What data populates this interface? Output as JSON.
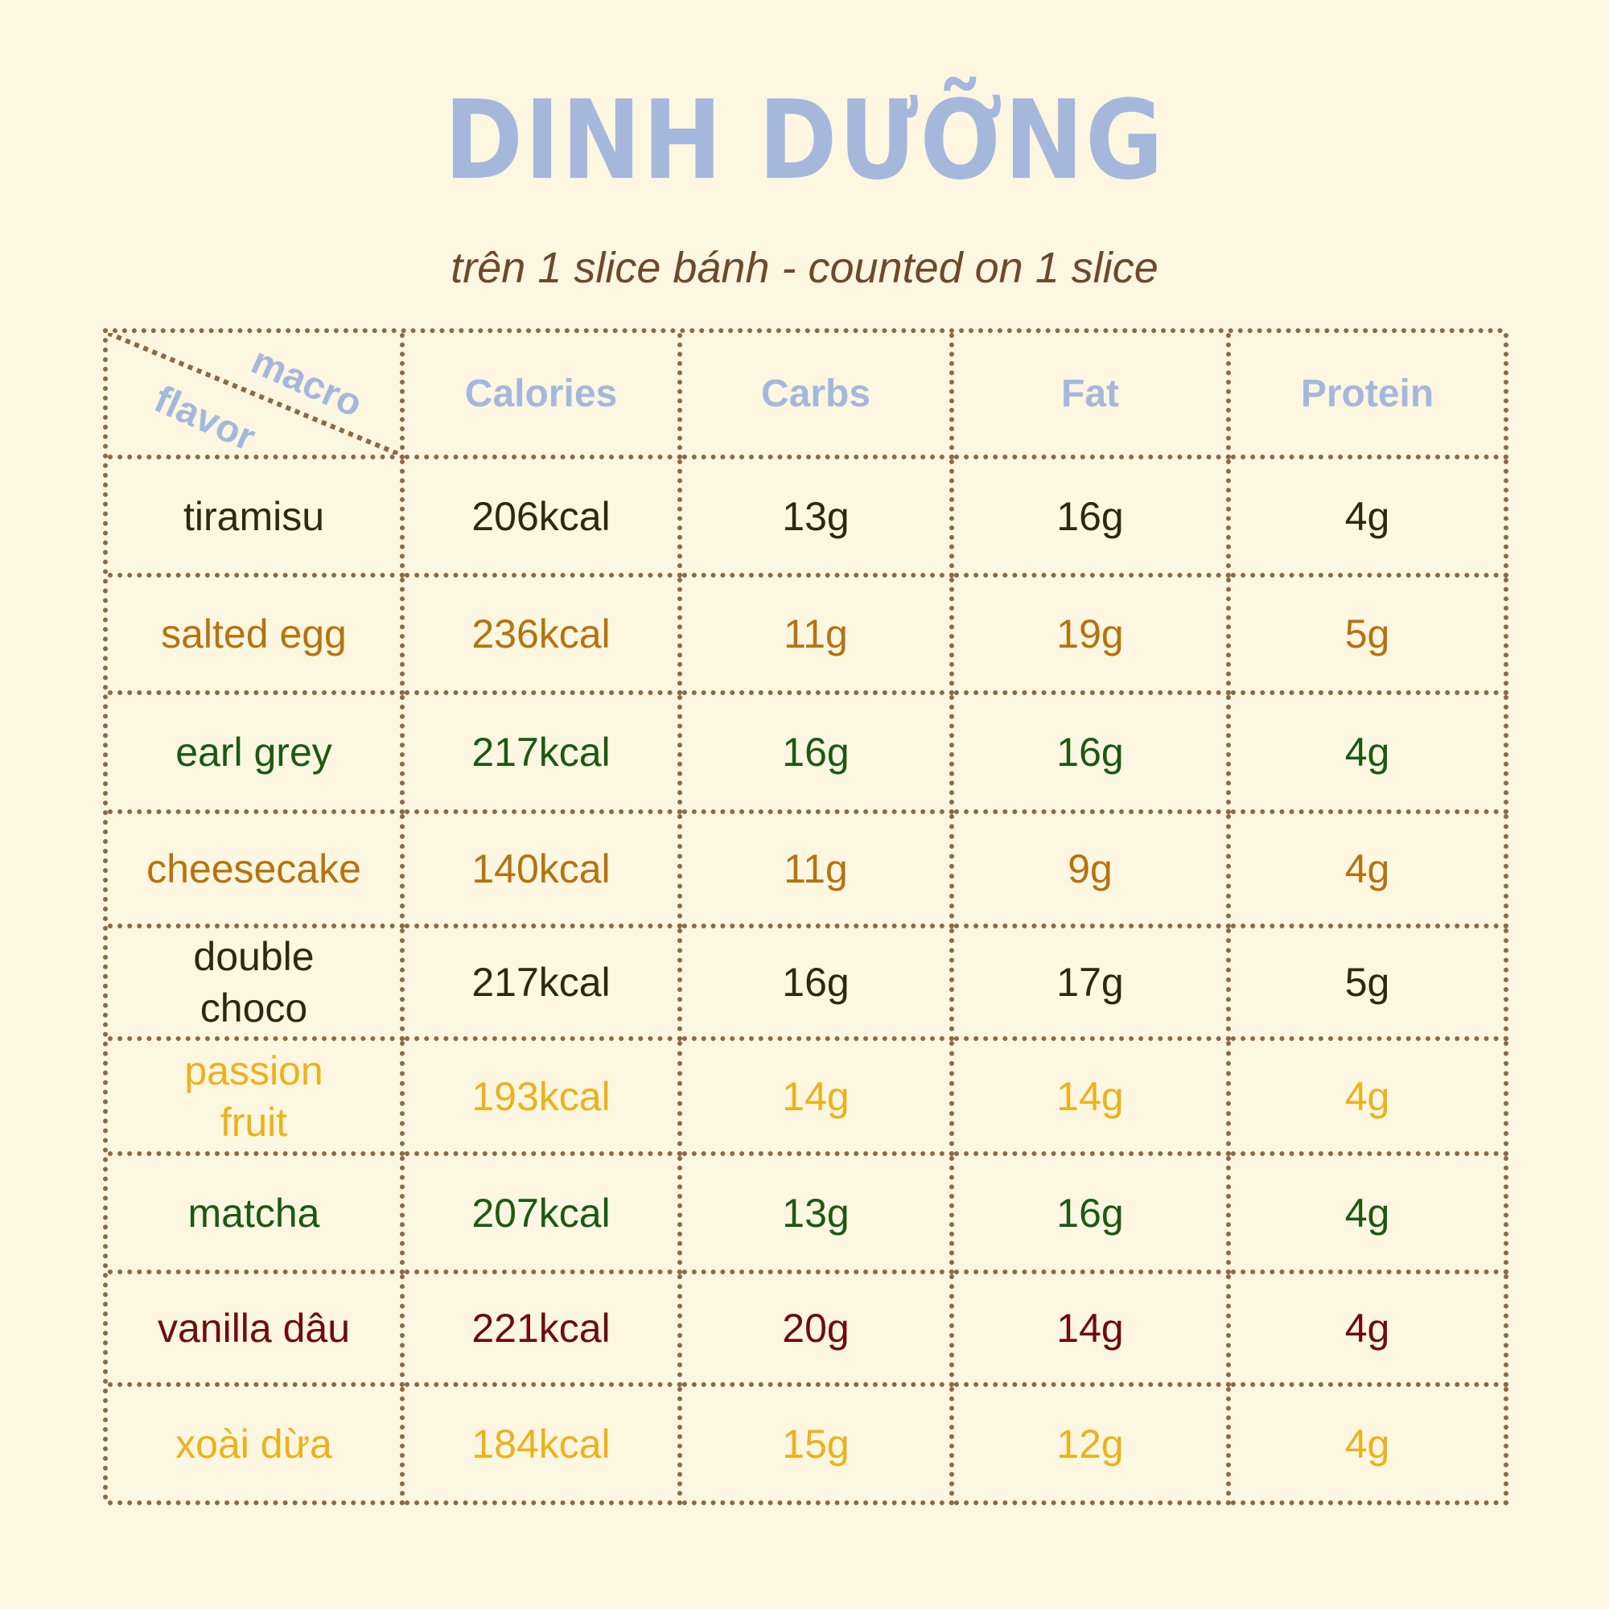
{
  "title": "DINH DƯỠNG",
  "subtitle": "trên 1 slice bánh - counted on 1 slice",
  "colors": {
    "background": "#fdf6e1",
    "border": "#8b6a44",
    "header": "#a5b8dc",
    "subtitle": "#6b4a2a"
  },
  "table": {
    "corner": {
      "top": "macro",
      "bottom": "flavor"
    },
    "headers": [
      "Calories",
      "Carbs",
      "Fat",
      "Protein"
    ],
    "rows": [
      {
        "flavor": "tiramisu",
        "calories": "206kcal",
        "carbs": "13g",
        "fat": "16g",
        "protein": "4g",
        "color": "#2a2a10"
      },
      {
        "flavor": "salted egg",
        "calories": "236kcal",
        "carbs": "11g",
        "fat": "19g",
        "protein": "5g",
        "color": "#b5730f"
      },
      {
        "flavor": "earl grey",
        "calories": "217kcal",
        "carbs": "16g",
        "fat": "16g",
        "protein": "4g",
        "color": "#1a5a12"
      },
      {
        "flavor": "cheesecake",
        "calories": "140kcal",
        "carbs": "11g",
        "fat": "9g",
        "protein": "4g",
        "color": "#b5730f"
      },
      {
        "flavor": "double choco",
        "calories": "217kcal",
        "carbs": "16g",
        "fat": "17g",
        "protein": "5g",
        "color": "#2a2a10"
      },
      {
        "flavor": "passion fruit",
        "calories": "193kcal",
        "carbs": "14g",
        "fat": "14g",
        "protein": "4g",
        "color": "#ebb21d"
      },
      {
        "flavor": "matcha",
        "calories": "207kcal",
        "carbs": "13g",
        "fat": "16g",
        "protein": "4g",
        "color": "#1a5a12"
      },
      {
        "flavor": "vanilla dâu",
        "calories": "221kcal",
        "carbs": "20g",
        "fat": "14g",
        "protein": "4g",
        "color": "#6e0c0c"
      },
      {
        "flavor": "xoài dừa",
        "calories": "184kcal",
        "carbs": "15g",
        "fat": "12g",
        "protein": "4g",
        "color": "#ebb21d"
      }
    ]
  }
}
